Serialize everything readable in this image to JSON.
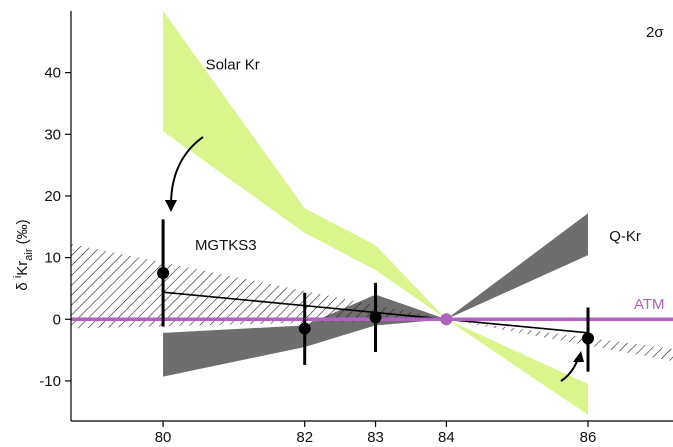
{
  "chart_data": {
    "type": "scatter",
    "corner_label": "2σ",
    "ylabel": {
      "prefix": "δ",
      "sup": "i",
      "main": "Kr",
      "sub": "air",
      "suffix": " (‰)"
    },
    "xlim": [
      78.7,
      87.2
    ],
    "ylim": [
      -16.5,
      50
    ],
    "xticks": [
      80,
      82,
      83,
      84,
      86
    ],
    "yticks": [
      -10,
      0,
      10,
      20,
      30,
      40
    ],
    "points": {
      "name": "MGTKS3",
      "x": [
        80,
        82,
        83,
        86
      ],
      "y": [
        7.5,
        -1.5,
        0.3,
        -3.1
      ],
      "err_low": [
        -1.2,
        -7.4,
        -5.3,
        -8.5
      ],
      "err_high": [
        16.2,
        4.3,
        5.9,
        1.9
      ]
    },
    "fit_line": {
      "x": [
        80,
        84,
        86
      ],
      "y": [
        4.4,
        0,
        -2.2
      ]
    },
    "atm_line": {
      "name": "ATM",
      "y": 0,
      "color": "#b062c0",
      "marker_x": 84
    },
    "bands": [
      {
        "name": "Solar Kr",
        "color": "#daf58c",
        "upper": [
          [
            80,
            50
          ],
          [
            82,
            18
          ],
          [
            83,
            12
          ],
          [
            84,
            0
          ],
          [
            86,
            -15.5
          ]
        ],
        "lower": [
          [
            80,
            30.5
          ],
          [
            82,
            14
          ],
          [
            83,
            8
          ],
          [
            84,
            0
          ],
          [
            86,
            -10.5
          ]
        ]
      },
      {
        "name": "Q-Kr",
        "color": "#6e6e6e",
        "upper": [
          [
            80,
            -2.2
          ],
          [
            82,
            -1.0
          ],
          [
            83,
            4.0
          ],
          [
            84,
            0
          ],
          [
            86,
            17.2
          ]
        ],
        "lower": [
          [
            80,
            -9.3
          ],
          [
            82,
            -4.5
          ],
          [
            83,
            -1.0
          ],
          [
            84,
            0
          ],
          [
            86,
            10.4
          ]
        ]
      },
      {
        "name": "hatched",
        "color": "#222222",
        "upper": [
          [
            78.7,
            12.2
          ],
          [
            84,
            0
          ],
          [
            87.2,
            -4.8
          ]
        ],
        "lower": [
          [
            78.7,
            -1.5
          ],
          [
            84,
            0
          ],
          [
            87.2,
            -6.8
          ]
        ]
      }
    ],
    "labels": [
      {
        "text": "Solar Kr",
        "x": 80.6,
        "y": 40.5
      },
      {
        "text": "MGTKS3",
        "x": 80.45,
        "y": 11.2
      },
      {
        "text": "Q-Kr",
        "x": 86.3,
        "y": 12.7
      }
    ]
  }
}
